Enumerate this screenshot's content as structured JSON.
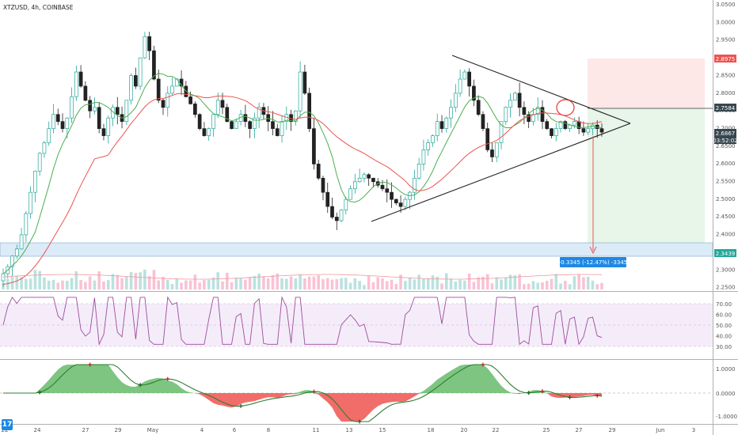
{
  "header": {
    "symbol_line": "XTZUSD, 4h, COINBASE"
  },
  "colors": {
    "up_candle": "#26a69a",
    "down_candle": "#222222",
    "ma_fast": "#4caf50",
    "ma_slow": "#ef5350",
    "support_band": "#bbdefb",
    "rsi_line": "#9c4d9c",
    "osc_pos": "#4caf50",
    "osc_neg": "#ef5350",
    "triangle": "#222222",
    "target_arrow": "#ef5350",
    "stop_zone": "#fde0e0",
    "target_zone": "#e3f2e3",
    "price_tag_blue": "#1e88e5",
    "price_tag_red": "#ef5350",
    "price_tag_dark": "#37474f"
  },
  "price_axis": {
    "ticks": [
      "3.0500",
      "3.0000",
      "2.9500",
      "2.9000",
      "2.8500",
      "2.8000",
      "2.7500",
      "2.7000",
      "2.6500",
      "2.6000",
      "2.5500",
      "2.5000",
      "2.4500",
      "2.4000",
      "2.3500",
      "2.3000",
      "2.2500"
    ],
    "tag_stop": "2.8975",
    "tag_entry": "2.7584",
    "tag_current": "2.6867",
    "tag_countdown": "03:52:02",
    "tag_support": "2.3439"
  },
  "rsi_axis": {
    "ticks": [
      "70.00",
      "60.00",
      "50.00",
      "40.00",
      "30.00"
    ]
  },
  "osc_axis": {
    "ticks": [
      "1.0000",
      "0.0000",
      "-1.0000"
    ]
  },
  "time_axis": {
    "ticks": [
      "22",
      "24",
      "27",
      "29",
      "May",
      "4",
      "6",
      "8",
      "11",
      "13",
      "15",
      "18",
      "20",
      "22",
      "25",
      "27",
      "29",
      "Jun",
      "3"
    ]
  },
  "measure_label": "-0.3345 (-12.47%) -3345",
  "logo_text": "17",
  "chart_data": {
    "type": "candlestick",
    "title": "XTZUSD, 4h, COINBASE",
    "ylim": [
      2.24,
      3.06
    ],
    "x_range_labels": [
      "22",
      "Jun",
      "3"
    ],
    "closes_approx": [
      2.29,
      2.31,
      2.34,
      2.36,
      2.4,
      2.46,
      2.52,
      2.58,
      2.63,
      2.66,
      2.7,
      2.74,
      2.72,
      2.7,
      2.73,
      2.79,
      2.86,
      2.82,
      2.78,
      2.75,
      2.76,
      2.7,
      2.68,
      2.73,
      2.76,
      2.74,
      2.72,
      2.78,
      2.85,
      2.82,
      2.9,
      2.96,
      2.92,
      2.84,
      2.78,
      2.76,
      2.8,
      2.82,
      2.84,
      2.82,
      2.79,
      2.77,
      2.74,
      2.7,
      2.68,
      2.7,
      2.74,
      2.78,
      2.76,
      2.72,
      2.7,
      2.72,
      2.74,
      2.72,
      2.7,
      2.73,
      2.76,
      2.74,
      2.72,
      2.7,
      2.68,
      2.72,
      2.74,
      2.72,
      2.75,
      2.86,
      2.8,
      2.7,
      2.6,
      2.56,
      2.52,
      2.48,
      2.45,
      2.44,
      2.47,
      2.5,
      2.53,
      2.55,
      2.56,
      2.57,
      2.56,
      2.55,
      2.54,
      2.53,
      2.52,
      2.5,
      2.49,
      2.48,
      2.5,
      2.52,
      2.56,
      2.6,
      2.64,
      2.66,
      2.68,
      2.72,
      2.7,
      2.73,
      2.76,
      2.8,
      2.84,
      2.86,
      2.82,
      2.78,
      2.74,
      2.7,
      2.64,
      2.62,
      2.66,
      2.72,
      2.76,
      2.78,
      2.8,
      2.76,
      2.74,
      2.72,
      2.74,
      2.76,
      2.72,
      2.7,
      2.68,
      2.7,
      2.72,
      2.7,
      2.71,
      2.72,
      2.7,
      2.69,
      2.7,
      2.71,
      2.7,
      2.69
    ],
    "triangle_upper": {
      "from": [
        571,
        70
      ],
      "to": [
        796,
        156
      ]
    },
    "triangle_lower": {
      "from": [
        469,
        280
      ],
      "to": [
        796,
        156
      ]
    },
    "stop_zone_price": [
      2.7584,
      2.8975
    ],
    "target_zone_price": [
      2.3439,
      2.7584
    ],
    "support_band_price": [
      2.34,
      2.38
    ],
    "rsi_levels": [
      70,
      50,
      30
    ]
  }
}
